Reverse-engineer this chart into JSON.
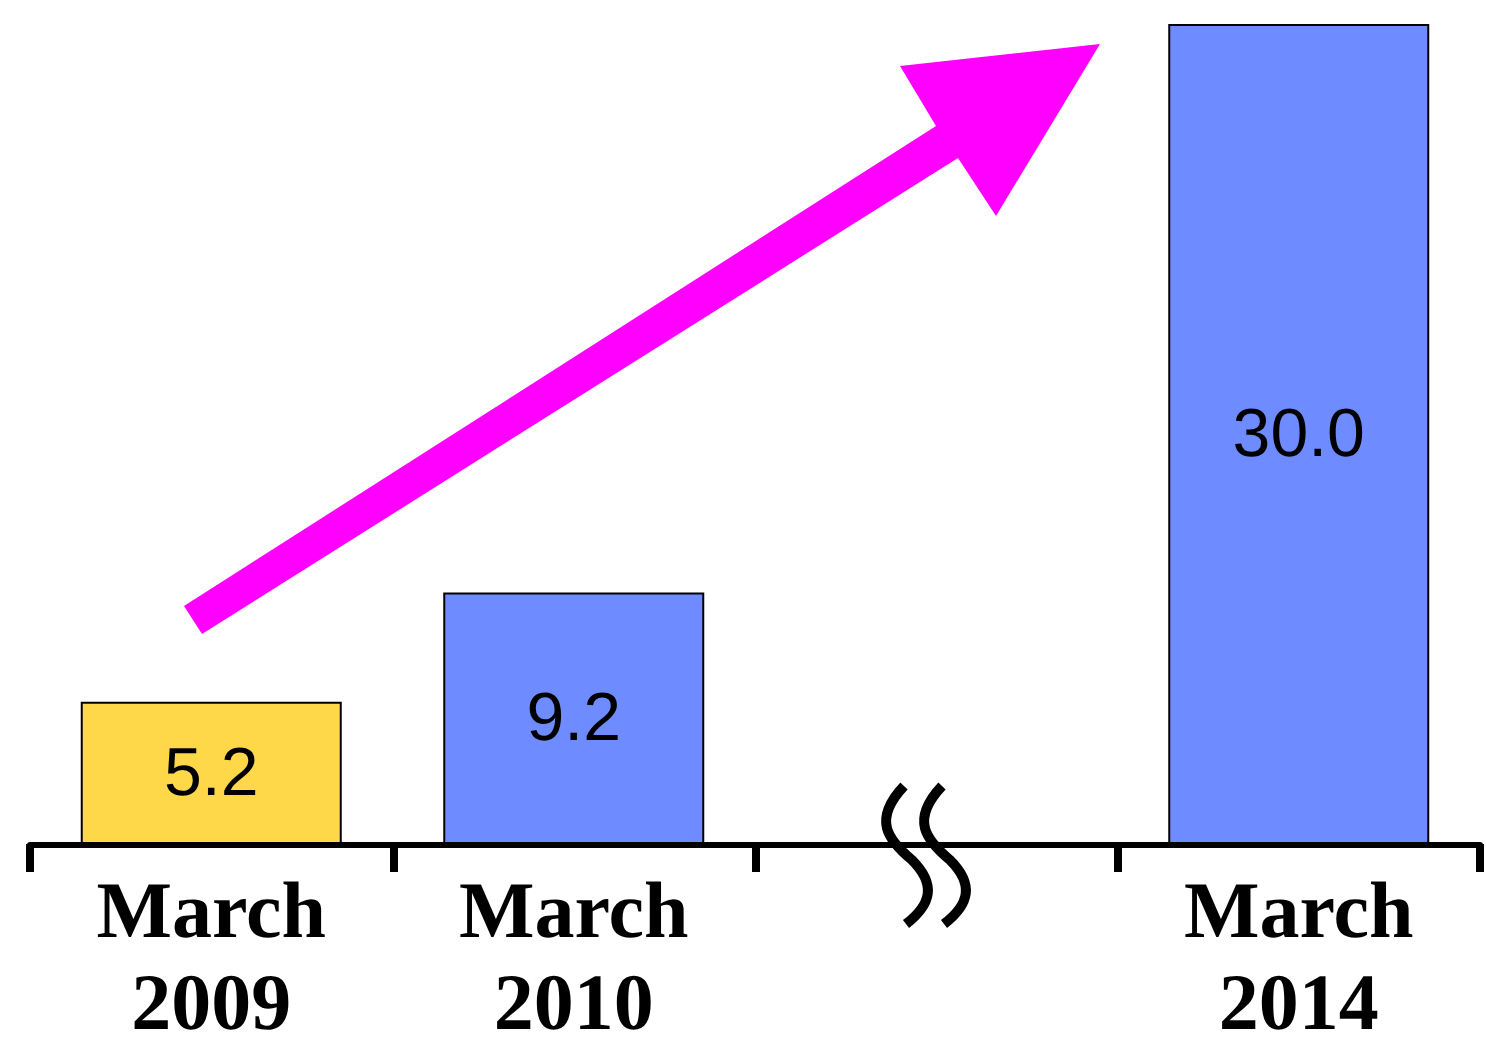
{
  "chart_data": {
    "type": "bar",
    "categories": [
      "March\n2009",
      "March\n2010",
      null,
      "March\n2014"
    ],
    "values": [
      5.2,
      9.2,
      null,
      30.0
    ],
    "colors": [
      "#ffd84a",
      "#6e8cff",
      null,
      "#6e8cff"
    ],
    "value_labels": [
      "5.2",
      "9.2",
      null,
      "30.0"
    ]
  }
}
